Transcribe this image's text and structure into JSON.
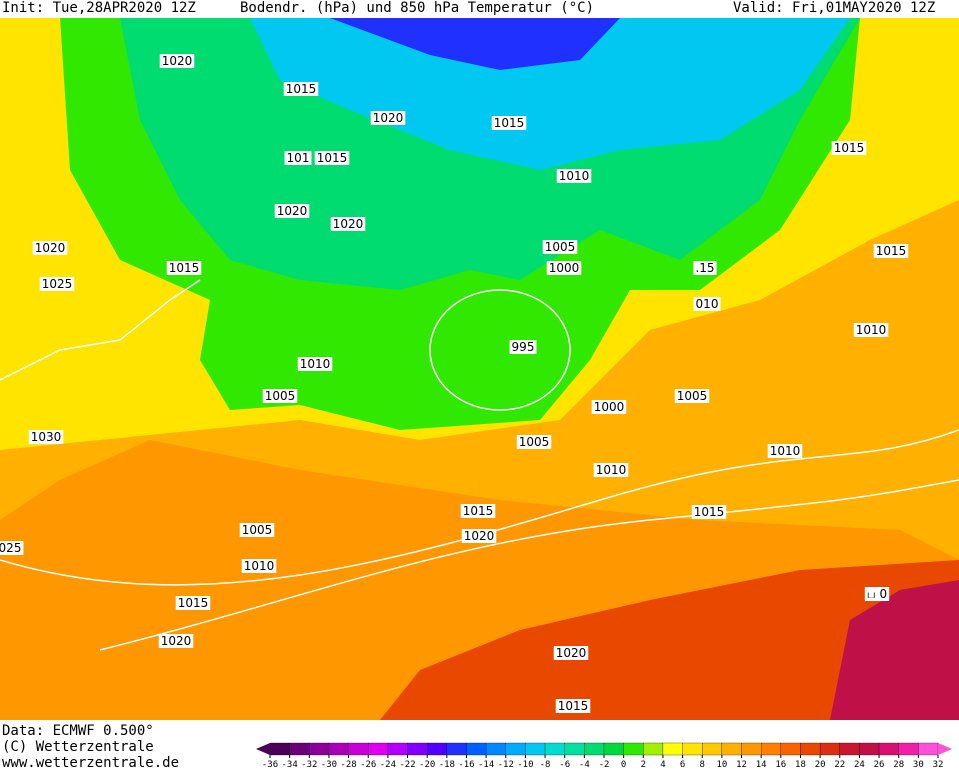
{
  "header": {
    "init": "Init: Tue,28APR2020 12Z",
    "title": "Bodendr. (hPa) und 850 hPa Temperatur (°C)",
    "valid": "Valid: Fri,01MAY2020 12Z"
  },
  "footer": {
    "source": "Data: ECMWF  0.500°",
    "copyright": "(C) Wetterzentrale",
    "url": "www.wetterzentrale.de"
  },
  "isobar_labels": [
    "1020",
    "1015",
    "1020",
    "1015",
    "101",
    "1015",
    "1015",
    "1010",
    "1020",
    "1020",
    "1020",
    "1015",
    "1005",
    "1000",
    "1015",
    ".15",
    "1025",
    "010",
    "1010",
    "995",
    "1010",
    "1005",
    "1005",
    "1000",
    "1030",
    "1005",
    "1010",
    "1010",
    "1015",
    "1015",
    "1005",
    "1020",
    "025",
    "1010",
    "1015",
    "ப 0",
    "1020",
    "1020",
    "1015"
  ],
  "colorbar": {
    "ticks": [
      -36,
      -34,
      -32,
      -30,
      -28,
      -26,
      -24,
      -22,
      -20,
      -18,
      -16,
      -14,
      -12,
      -10,
      -8,
      -6,
      -4,
      -2,
      0,
      2,
      4,
      6,
      8,
      10,
      12,
      14,
      16,
      18,
      20,
      22,
      24,
      26,
      28,
      30,
      32
    ],
    "colors": [
      "#4a0058",
      "#6a0078",
      "#8a0098",
      "#a800b8",
      "#c800d8",
      "#e000f0",
      "#b000ff",
      "#8000ff",
      "#5000ff",
      "#2030ff",
      "#0060ff",
      "#0088ff",
      "#00aaff",
      "#00c8f0",
      "#00dcd0",
      "#00e0a0",
      "#00dc70",
      "#00d840",
      "#30e800",
      "#a0f000",
      "#ffff00",
      "#ffe400",
      "#ffc800",
      "#ffb000",
      "#ff9800",
      "#ff8000",
      "#f86400",
      "#e84800",
      "#d83010",
      "#c81830",
      "#c01048",
      "#d81070",
      "#f020a8",
      "#ff50d8"
    ]
  }
}
